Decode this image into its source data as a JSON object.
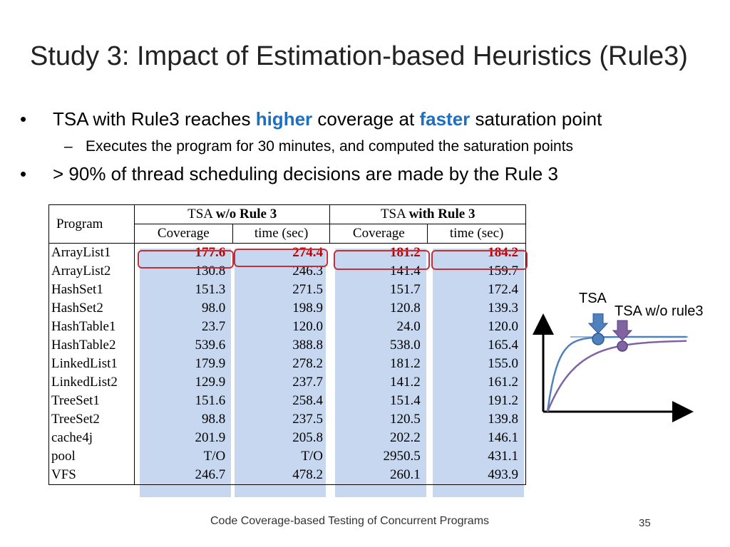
{
  "title": "Study 3: Impact of Estimation-based Heuristics (Rule3)",
  "bullets": {
    "b1_pre": "TSA with Rule3 reaches ",
    "b1_hl1": "higher",
    "b1_mid": " coverage at ",
    "b1_hl2": "faster",
    "b1_post": " saturation point",
    "sub1": "Executes the program for 30 minutes, and computed the saturation points",
    "b2": "> 90% of thread scheduling decisions are made by the Rule 3",
    "bullet_char": "•",
    "dash_char": "–"
  },
  "table": {
    "program_header": "Program",
    "group1_pre": "TSA ",
    "group1_bold": "w/o Rule 3",
    "group2_pre": "TSA ",
    "group2_bold": "with Rule 3",
    "col_coverage": "Coverage",
    "col_time": "time (sec)",
    "rows": [
      [
        "ArrayList1",
        "177.6",
        "274.4",
        "181.2",
        "184.2"
      ],
      [
        "ArrayList2",
        "130.8",
        "246.3",
        "141.4",
        "159.7"
      ],
      [
        "HashSet1",
        "151.3",
        "271.5",
        "151.7",
        "172.4"
      ],
      [
        "HashSet2",
        "98.0",
        "198.9",
        "120.8",
        "139.3"
      ],
      [
        "HashTable1",
        "23.7",
        "120.0",
        "24.0",
        "120.0"
      ],
      [
        "HashTable2",
        "539.6",
        "388.8",
        "538.0",
        "165.4"
      ],
      [
        "LinkedList1",
        "179.9",
        "278.2",
        "181.2",
        "155.0"
      ],
      [
        "LinkedList2",
        "129.9",
        "237.7",
        "141.2",
        "161.2"
      ],
      [
        "TreeSet1",
        "151.6",
        "258.4",
        "151.4",
        "191.2"
      ],
      [
        "TreeSet2",
        "98.8",
        "237.5",
        "120.5",
        "139.8"
      ],
      [
        "cache4j",
        "201.9",
        "205.8",
        "202.2",
        "146.1"
      ],
      [
        "pool",
        "T/O",
        "T/O",
        "2950.5",
        "431.1"
      ],
      [
        "VFS",
        "246.7",
        "478.2",
        "260.1",
        "493.9"
      ]
    ]
  },
  "diagram": {
    "label_tsa": "TSA",
    "label_tsa_wo": "TSA w/o rule3",
    "colors": {
      "tsa": "#4f81bd",
      "tsa_wo": "#8064a2",
      "arrow_tsa": "#4f81bd",
      "arrow_wo": "#8064a2"
    }
  },
  "footer": "Code Coverage-based Testing of Concurrent Programs",
  "page_number": "35"
}
